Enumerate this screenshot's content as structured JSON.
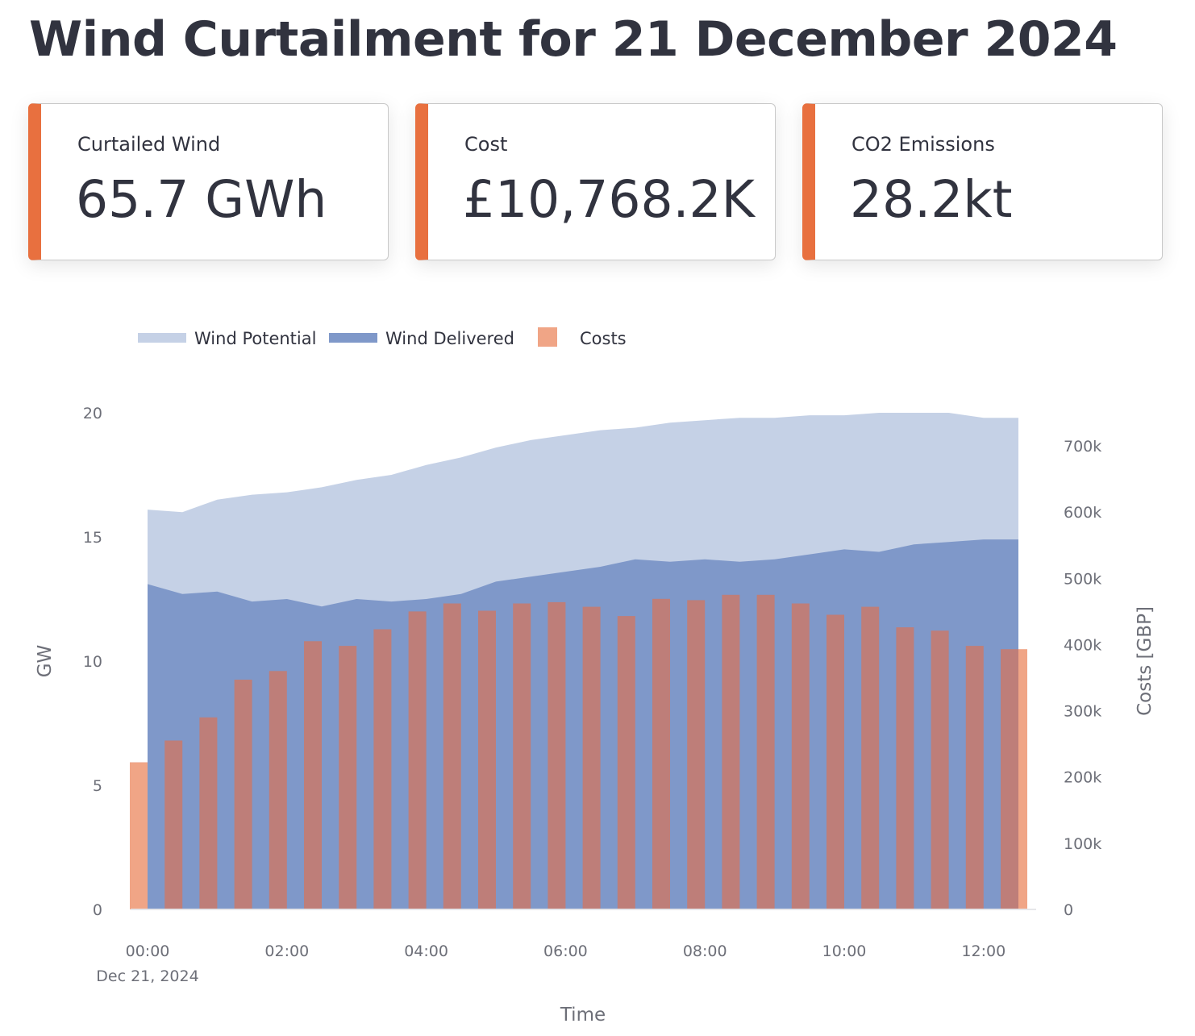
{
  "page": {
    "title": "Wind Curtailment for 21 December 2024"
  },
  "metrics": [
    {
      "label": "Curtailed Wind",
      "value": "65.7 GWh"
    },
    {
      "label": "Cost",
      "value": "£10,768.2K"
    },
    {
      "label": "CO2 Emissions",
      "value": "28.2kt"
    }
  ],
  "colors": {
    "accent": "#e8703f",
    "wind_potential": "#c5d1e6",
    "wind_delivered": "#7f98c9",
    "costs": "#f0a586",
    "costs_overlap": "#be7e79"
  },
  "chart_data": {
    "type": "area+bar",
    "legend": [
      "Wind Potential",
      "Wind Delivered",
      "Costs"
    ],
    "legend_position": "top-left",
    "xlabel": "Time",
    "ylabel_left": "GW",
    "ylabel_right": "Costs [GBP]",
    "x_tick_labels": [
      "00:00",
      "02:00",
      "04:00",
      "06:00",
      "08:00",
      "10:00",
      "12:00"
    ],
    "x_date_label": "Dec 21, 2024",
    "y_left_ticks": [
      "0",
      "5",
      "10",
      "15",
      "20"
    ],
    "y_right_ticks": [
      "0",
      "100k",
      "200k",
      "300k",
      "400k",
      "500k",
      "600k",
      "700k"
    ],
    "ylim_left": [
      0,
      20
    ],
    "ylim_right": [
      0,
      750000
    ],
    "x": [
      "00:00",
      "00:30",
      "01:00",
      "01:30",
      "02:00",
      "02:30",
      "03:00",
      "03:30",
      "04:00",
      "04:30",
      "05:00",
      "05:30",
      "06:00",
      "06:30",
      "07:00",
      "07:30",
      "08:00",
      "08:30",
      "09:00",
      "09:30",
      "10:00",
      "10:30",
      "11:00",
      "11:30",
      "12:00",
      "12:30"
    ],
    "series": [
      {
        "name": "Wind Potential",
        "type": "area",
        "values": [
          16.1,
          16.0,
          16.5,
          16.7,
          16.8,
          17.0,
          17.3,
          17.5,
          17.9,
          18.2,
          18.6,
          18.9,
          19.1,
          19.3,
          19.4,
          19.6,
          19.7,
          19.8,
          19.8,
          19.9,
          19.9,
          20.0,
          20.0,
          20.0,
          19.8,
          19.8
        ]
      },
      {
        "name": "Wind Delivered",
        "type": "area",
        "values": [
          13.1,
          12.7,
          12.8,
          12.4,
          12.5,
          12.2,
          12.5,
          12.4,
          12.5,
          12.7,
          13.2,
          13.4,
          13.6,
          13.8,
          14.1,
          14.0,
          14.1,
          14.0,
          14.1,
          14.3,
          14.5,
          14.4,
          14.7,
          14.8,
          14.9,
          14.9
        ]
      },
      {
        "name": "Costs",
        "type": "bar",
        "values": [
          222000,
          255000,
          290000,
          347000,
          360000,
          405000,
          398000,
          423000,
          450000,
          462000,
          451000,
          462000,
          464000,
          457000,
          443000,
          469000,
          467000,
          475000,
          475000,
          462000,
          445000,
          457000,
          426000,
          421000,
          398000,
          393000
        ]
      }
    ]
  }
}
